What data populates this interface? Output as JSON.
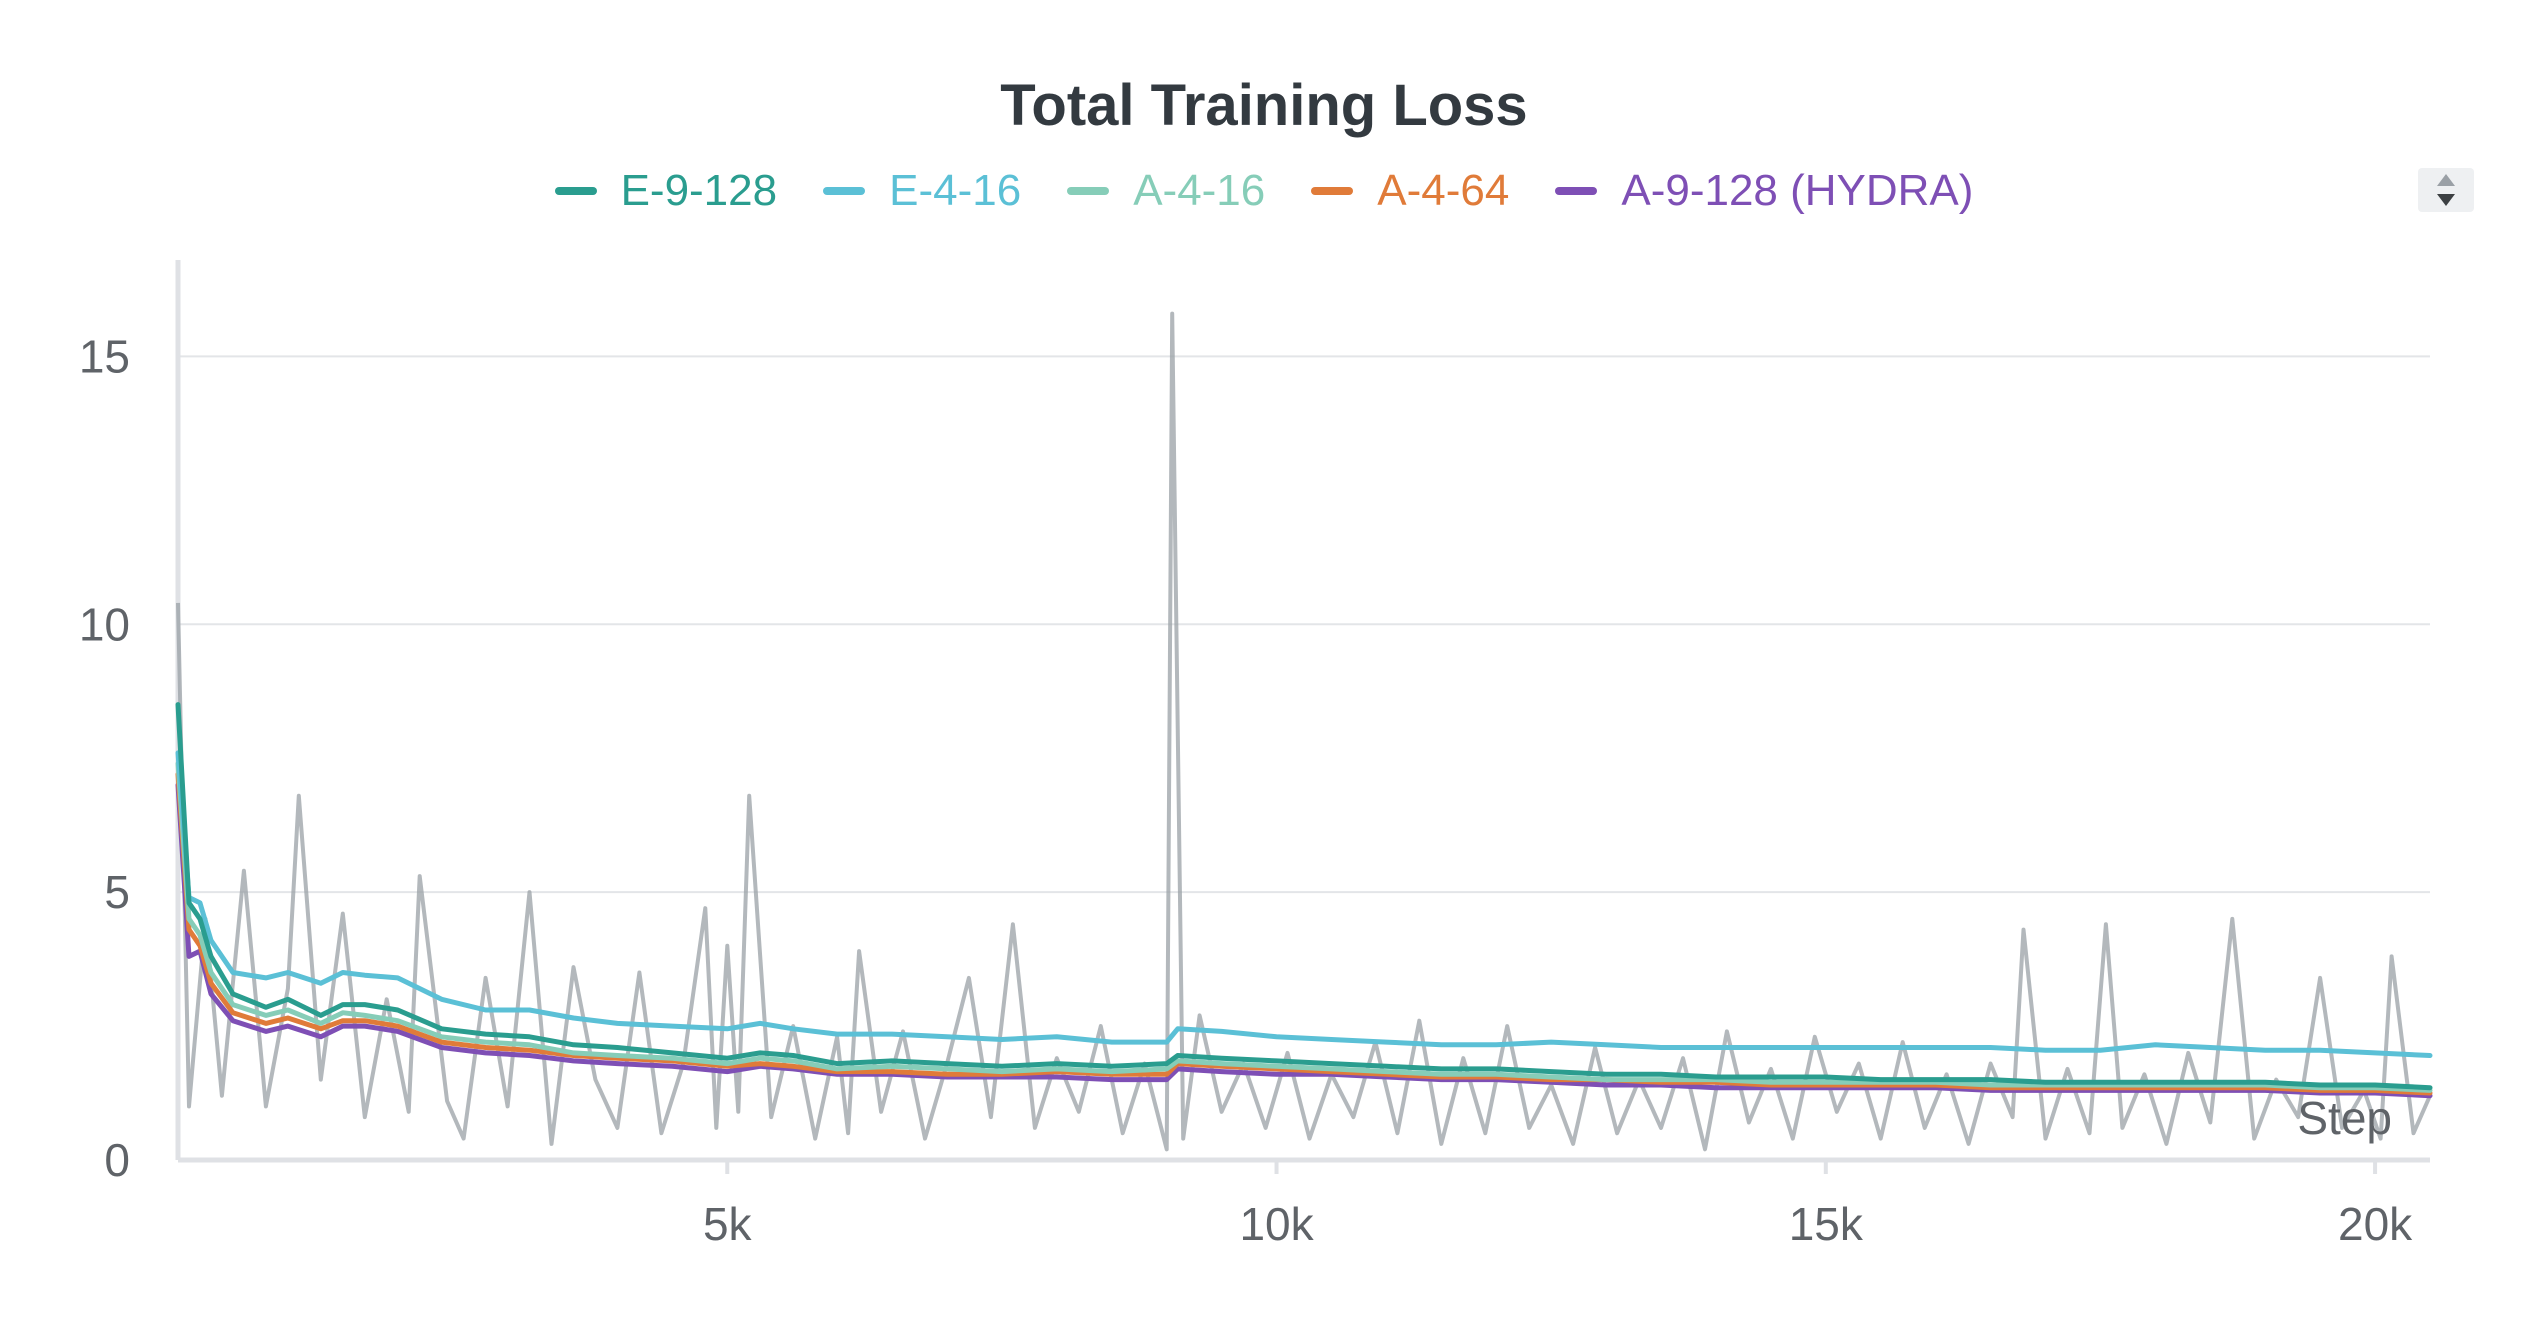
{
  "chart_data": {
    "type": "line",
    "title": "Total Training Loss",
    "xlabel": "Step",
    "ylabel": "",
    "xlim": [
      0,
      20500
    ],
    "ylim": [
      0,
      16.8
    ],
    "x_ticks": [
      5000,
      10000,
      15000,
      20000
    ],
    "x_tick_labels": [
      "5k",
      "10k",
      "15k",
      "20k"
    ],
    "y_ticks": [
      0,
      5,
      10,
      15
    ],
    "y_tick_labels": [
      "0",
      "5",
      "10",
      "15"
    ],
    "grid": "horizontal",
    "legend_placement": "top-center",
    "smoothed": true,
    "raw_series_color": "#9aa0a6",
    "raw_series": [
      {
        "x": 0,
        "y": 10.4
      },
      {
        "x": 100,
        "y": 1.0
      },
      {
        "x": 250,
        "y": 4.5
      },
      {
        "x": 400,
        "y": 1.2
      },
      {
        "x": 600,
        "y": 5.4
      },
      {
        "x": 800,
        "y": 1.0
      },
      {
        "x": 1000,
        "y": 3.2
      },
      {
        "x": 1100,
        "y": 6.8
      },
      {
        "x": 1300,
        "y": 1.5
      },
      {
        "x": 1500,
        "y": 4.6
      },
      {
        "x": 1700,
        "y": 0.8
      },
      {
        "x": 1900,
        "y": 3.0
      },
      {
        "x": 2100,
        "y": 0.9
      },
      {
        "x": 2200,
        "y": 5.3
      },
      {
        "x": 2450,
        "y": 1.1
      },
      {
        "x": 2600,
        "y": 0.4
      },
      {
        "x": 2800,
        "y": 3.4
      },
      {
        "x": 3000,
        "y": 1.0
      },
      {
        "x": 3200,
        "y": 5.0
      },
      {
        "x": 3400,
        "y": 0.3
      },
      {
        "x": 3600,
        "y": 3.6
      },
      {
        "x": 3800,
        "y": 1.5
      },
      {
        "x": 4000,
        "y": 0.6
      },
      {
        "x": 4200,
        "y": 3.5
      },
      {
        "x": 4400,
        "y": 0.5
      },
      {
        "x": 4600,
        "y": 1.8
      },
      {
        "x": 4800,
        "y": 4.7
      },
      {
        "x": 4900,
        "y": 0.6
      },
      {
        "x": 5000,
        "y": 4.0
      },
      {
        "x": 5100,
        "y": 0.9
      },
      {
        "x": 5200,
        "y": 6.8
      },
      {
        "x": 5400,
        "y": 0.8
      },
      {
        "x": 5600,
        "y": 2.5
      },
      {
        "x": 5800,
        "y": 0.4
      },
      {
        "x": 6000,
        "y": 2.3
      },
      {
        "x": 6100,
        "y": 0.5
      },
      {
        "x": 6200,
        "y": 3.9
      },
      {
        "x": 6400,
        "y": 0.9
      },
      {
        "x": 6600,
        "y": 2.4
      },
      {
        "x": 6800,
        "y": 0.4
      },
      {
        "x": 7000,
        "y": 1.8
      },
      {
        "x": 7200,
        "y": 3.4
      },
      {
        "x": 7400,
        "y": 0.8
      },
      {
        "x": 7600,
        "y": 4.4
      },
      {
        "x": 7800,
        "y": 0.6
      },
      {
        "x": 8000,
        "y": 1.9
      },
      {
        "x": 8200,
        "y": 0.9
      },
      {
        "x": 8400,
        "y": 2.5
      },
      {
        "x": 8600,
        "y": 0.5
      },
      {
        "x": 8800,
        "y": 1.8
      },
      {
        "x": 9000,
        "y": 0.2
      },
      {
        "x": 9050,
        "y": 15.8
      },
      {
        "x": 9150,
        "y": 0.4
      },
      {
        "x": 9300,
        "y": 2.7
      },
      {
        "x": 9500,
        "y": 0.9
      },
      {
        "x": 9700,
        "y": 1.8
      },
      {
        "x": 9900,
        "y": 0.6
      },
      {
        "x": 10100,
        "y": 2.0
      },
      {
        "x": 10300,
        "y": 0.4
      },
      {
        "x": 10500,
        "y": 1.6
      },
      {
        "x": 10700,
        "y": 0.8
      },
      {
        "x": 10900,
        "y": 2.2
      },
      {
        "x": 11100,
        "y": 0.5
      },
      {
        "x": 11300,
        "y": 2.6
      },
      {
        "x": 11500,
        "y": 0.3
      },
      {
        "x": 11700,
        "y": 1.9
      },
      {
        "x": 11900,
        "y": 0.5
      },
      {
        "x": 12100,
        "y": 2.5
      },
      {
        "x": 12300,
        "y": 0.6
      },
      {
        "x": 12500,
        "y": 1.4
      },
      {
        "x": 12700,
        "y": 0.3
      },
      {
        "x": 12900,
        "y": 2.1
      },
      {
        "x": 13100,
        "y": 0.5
      },
      {
        "x": 13300,
        "y": 1.5
      },
      {
        "x": 13500,
        "y": 0.6
      },
      {
        "x": 13700,
        "y": 1.9
      },
      {
        "x": 13900,
        "y": 0.2
      },
      {
        "x": 14100,
        "y": 2.4
      },
      {
        "x": 14300,
        "y": 0.7
      },
      {
        "x": 14500,
        "y": 1.7
      },
      {
        "x": 14700,
        "y": 0.4
      },
      {
        "x": 14900,
        "y": 2.3
      },
      {
        "x": 15100,
        "y": 0.9
      },
      {
        "x": 15300,
        "y": 1.8
      },
      {
        "x": 15500,
        "y": 0.4
      },
      {
        "x": 15700,
        "y": 2.2
      },
      {
        "x": 15900,
        "y": 0.6
      },
      {
        "x": 16100,
        "y": 1.6
      },
      {
        "x": 16300,
        "y": 0.3
      },
      {
        "x": 16500,
        "y": 1.8
      },
      {
        "x": 16700,
        "y": 0.8
      },
      {
        "x": 16800,
        "y": 4.3
      },
      {
        "x": 17000,
        "y": 0.4
      },
      {
        "x": 17200,
        "y": 1.7
      },
      {
        "x": 17400,
        "y": 0.5
      },
      {
        "x": 17550,
        "y": 4.4
      },
      {
        "x": 17700,
        "y": 0.6
      },
      {
        "x": 17900,
        "y": 1.6
      },
      {
        "x": 18100,
        "y": 0.3
      },
      {
        "x": 18300,
        "y": 2.0
      },
      {
        "x": 18500,
        "y": 0.7
      },
      {
        "x": 18700,
        "y": 4.5
      },
      {
        "x": 18900,
        "y": 0.4
      },
      {
        "x": 19100,
        "y": 1.5
      },
      {
        "x": 19300,
        "y": 0.8
      },
      {
        "x": 19500,
        "y": 3.4
      },
      {
        "x": 19700,
        "y": 0.6
      },
      {
        "x": 19900,
        "y": 1.3
      },
      {
        "x": 20050,
        "y": 0.4
      },
      {
        "x": 20150,
        "y": 3.8
      },
      {
        "x": 20350,
        "y": 0.5
      },
      {
        "x": 20500,
        "y": 1.2
      }
    ],
    "series": [
      {
        "name": "E-9-128",
        "color": "#2a9d8f",
        "x": [
          0,
          100,
          200,
          300,
          500,
          800,
          1000,
          1300,
          1500,
          1700,
          2000,
          2400,
          2800,
          3200,
          3600,
          4000,
          4500,
          5000,
          5300,
          5600,
          6000,
          6500,
          7000,
          7500,
          8000,
          8500,
          9000,
          9100,
          9500,
          10000,
          10500,
          11000,
          11500,
          12000,
          12500,
          13000,
          13500,
          14000,
          14500,
          15000,
          15500,
          16000,
          16500,
          17000,
          17500,
          18000,
          18500,
          19000,
          19500,
          20000,
          20500
        ],
        "values": [
          8.5,
          4.8,
          4.5,
          3.8,
          3.1,
          2.85,
          3.0,
          2.7,
          2.9,
          2.9,
          2.8,
          2.45,
          2.35,
          2.3,
          2.15,
          2.1,
          2.0,
          1.9,
          2.0,
          1.95,
          1.8,
          1.85,
          1.8,
          1.75,
          1.8,
          1.75,
          1.8,
          1.95,
          1.9,
          1.85,
          1.8,
          1.75,
          1.7,
          1.7,
          1.65,
          1.6,
          1.6,
          1.55,
          1.55,
          1.55,
          1.5,
          1.5,
          1.5,
          1.45,
          1.45,
          1.45,
          1.45,
          1.45,
          1.4,
          1.4,
          1.35
        ]
      },
      {
        "name": "E-4-16",
        "color": "#5bc0d6",
        "x": [
          0,
          100,
          200,
          300,
          500,
          800,
          1000,
          1300,
          1500,
          1700,
          2000,
          2400,
          2800,
          3200,
          3600,
          4000,
          4500,
          5000,
          5300,
          5600,
          6000,
          6500,
          7000,
          7500,
          8000,
          8500,
          9000,
          9100,
          9500,
          10000,
          10500,
          11000,
          11500,
          12000,
          12500,
          13000,
          13500,
          14000,
          14500,
          15000,
          15500,
          16000,
          16500,
          17000,
          17500,
          18000,
          18500,
          19000,
          19500,
          20000,
          20500
        ],
        "values": [
          7.6,
          4.9,
          4.8,
          4.1,
          3.5,
          3.4,
          3.5,
          3.3,
          3.5,
          3.45,
          3.4,
          3.0,
          2.8,
          2.8,
          2.65,
          2.55,
          2.5,
          2.45,
          2.55,
          2.45,
          2.35,
          2.35,
          2.3,
          2.25,
          2.3,
          2.2,
          2.2,
          2.45,
          2.4,
          2.3,
          2.25,
          2.2,
          2.15,
          2.15,
          2.2,
          2.15,
          2.1,
          2.1,
          2.1,
          2.1,
          2.1,
          2.1,
          2.1,
          2.05,
          2.05,
          2.15,
          2.1,
          2.05,
          2.05,
          2.0,
          1.95
        ]
      },
      {
        "name": "A-4-16",
        "color": "#86cdb8",
        "x": [
          0,
          100,
          200,
          300,
          500,
          800,
          1000,
          1300,
          1500,
          1700,
          2000,
          2400,
          2800,
          3200,
          3600,
          4000,
          4500,
          5000,
          5300,
          5600,
          6000,
          6500,
          7000,
          7500,
          8000,
          8500,
          9000,
          9100,
          9500,
          10000,
          10500,
          11000,
          11500,
          12000,
          12500,
          13000,
          13500,
          14000,
          14500,
          15000,
          15500,
          16000,
          16500,
          17000,
          17500,
          18000,
          18500,
          19000,
          19500,
          20000,
          20500
        ],
        "values": [
          7.4,
          4.5,
          4.2,
          3.5,
          2.9,
          2.7,
          2.8,
          2.55,
          2.75,
          2.7,
          2.6,
          2.3,
          2.2,
          2.15,
          2.0,
          1.95,
          1.9,
          1.8,
          1.9,
          1.85,
          1.7,
          1.75,
          1.7,
          1.65,
          1.7,
          1.65,
          1.7,
          1.85,
          1.8,
          1.75,
          1.7,
          1.65,
          1.6,
          1.6,
          1.55,
          1.5,
          1.5,
          1.5,
          1.45,
          1.45,
          1.45,
          1.45,
          1.4,
          1.4,
          1.4,
          1.4,
          1.4,
          1.4,
          1.35,
          1.35,
          1.3
        ]
      },
      {
        "name": "A-4-64",
        "color": "#e07b39",
        "x": [
          0,
          100,
          200,
          300,
          500,
          800,
          1000,
          1300,
          1500,
          1700,
          2000,
          2400,
          2800,
          3200,
          3600,
          4000,
          4500,
          5000,
          5300,
          5600,
          6000,
          6500,
          7000,
          7500,
          8000,
          8500,
          9000,
          9100,
          9500,
          10000,
          10500,
          11000,
          11500,
          12000,
          12500,
          13000,
          13500,
          14000,
          14500,
          15000,
          15500,
          16000,
          16500,
          17000,
          17500,
          18000,
          18500,
          19000,
          19500,
          20000,
          20500
        ],
        "values": [
          7.2,
          4.3,
          4.0,
          3.3,
          2.75,
          2.55,
          2.65,
          2.45,
          2.6,
          2.6,
          2.5,
          2.2,
          2.1,
          2.05,
          1.95,
          1.9,
          1.85,
          1.75,
          1.8,
          1.75,
          1.65,
          1.65,
          1.6,
          1.6,
          1.65,
          1.6,
          1.6,
          1.8,
          1.75,
          1.7,
          1.65,
          1.6,
          1.55,
          1.55,
          1.5,
          1.5,
          1.45,
          1.45,
          1.4,
          1.4,
          1.4,
          1.4,
          1.35,
          1.35,
          1.35,
          1.35,
          1.35,
          1.35,
          1.3,
          1.3,
          1.25
        ]
      },
      {
        "name": "A-9-128 (HYDRA)",
        "color": "#7e4fb5",
        "x": [
          0,
          100,
          200,
          300,
          500,
          800,
          1000,
          1300,
          1500,
          1700,
          2000,
          2400,
          2800,
          3200,
          3600,
          4000,
          4500,
          5000,
          5300,
          5600,
          6000,
          6500,
          7000,
          7500,
          8000,
          8500,
          9000,
          9100,
          9500,
          10000,
          10500,
          11000,
          11500,
          12000,
          12500,
          13000,
          13500,
          14000,
          14500,
          15000,
          15500,
          16000,
          16500,
          17000,
          17500,
          18000,
          18500,
          19000,
          19500,
          20000,
          20500
        ],
        "values": [
          7.0,
          3.8,
          3.9,
          3.1,
          2.6,
          2.4,
          2.5,
          2.3,
          2.5,
          2.5,
          2.4,
          2.1,
          2.0,
          1.95,
          1.85,
          1.8,
          1.75,
          1.65,
          1.75,
          1.7,
          1.6,
          1.6,
          1.55,
          1.55,
          1.55,
          1.5,
          1.5,
          1.7,
          1.65,
          1.6,
          1.6,
          1.55,
          1.5,
          1.5,
          1.45,
          1.4,
          1.4,
          1.35,
          1.35,
          1.35,
          1.35,
          1.35,
          1.3,
          1.3,
          1.3,
          1.3,
          1.3,
          1.3,
          1.25,
          1.25,
          1.2
        ]
      }
    ]
  }
}
